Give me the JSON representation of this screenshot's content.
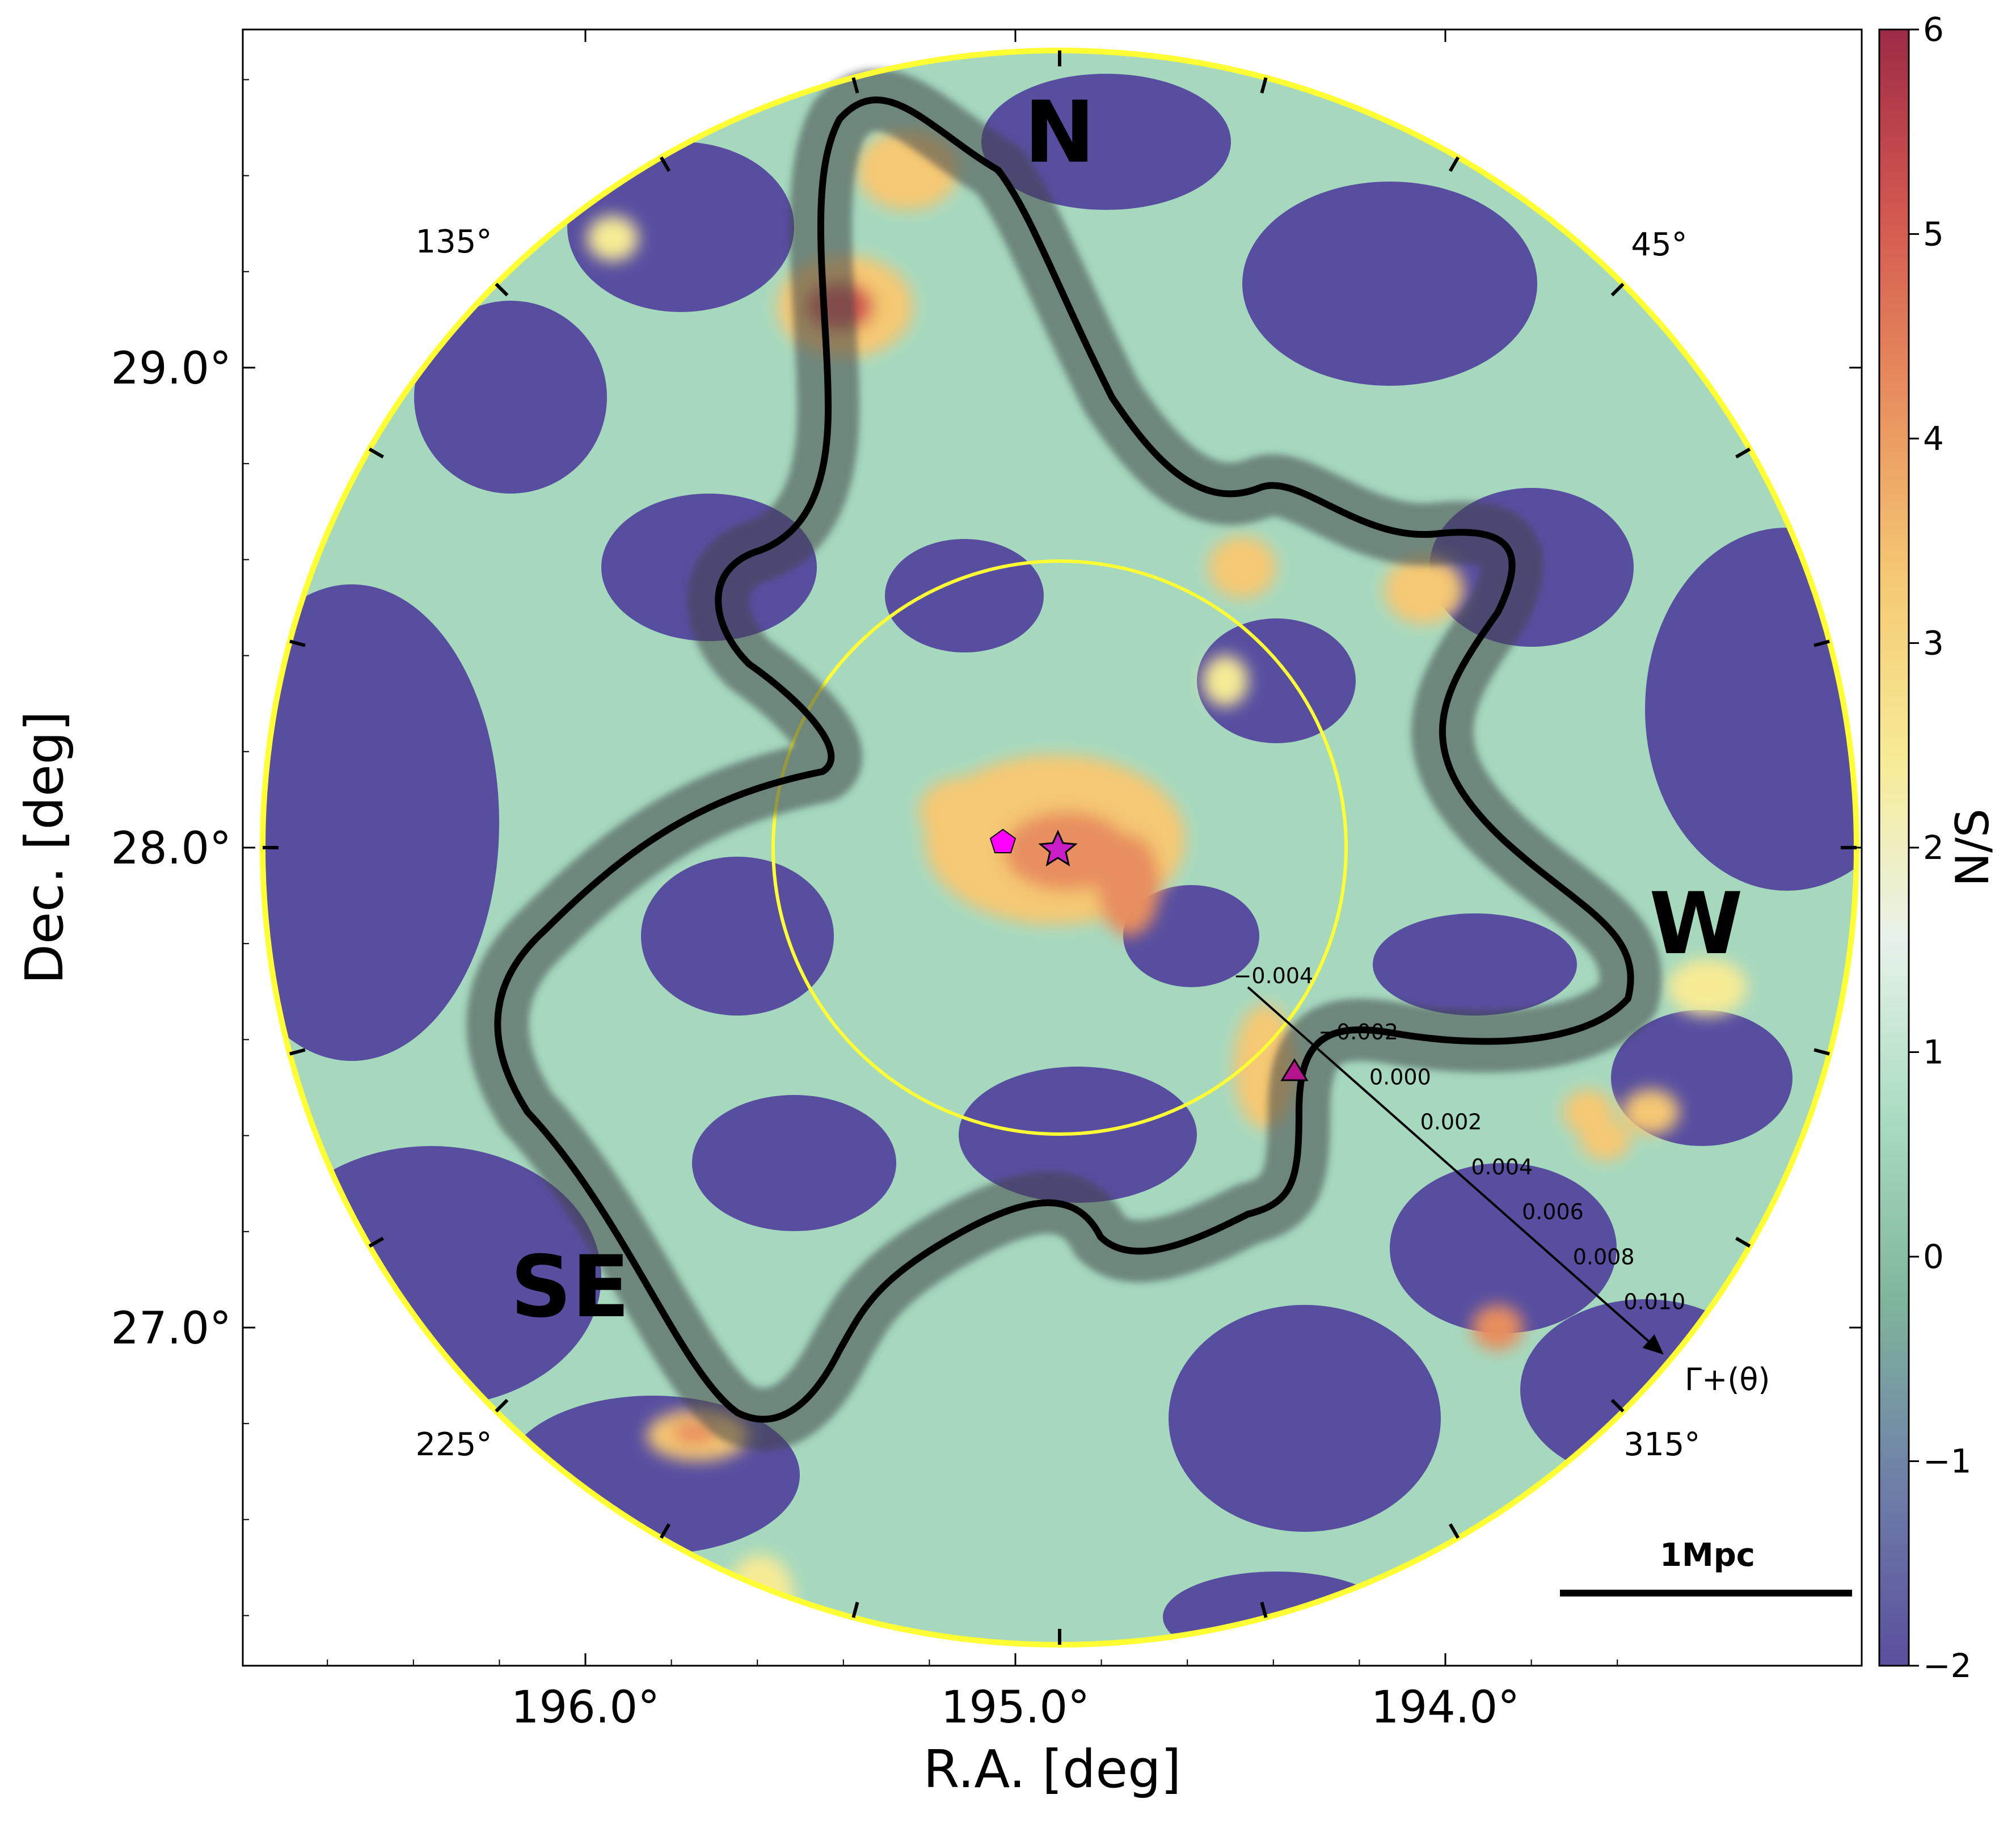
{
  "chart_data": {
    "type": "heatmap",
    "title": "",
    "xlabel": "R.A. [deg]",
    "ylabel": "Dec. [deg]",
    "x_axis": {
      "ticks": [
        196.0,
        195.0,
        194.0
      ],
      "tick_labels": [
        "196.0°",
        "195.0°",
        "194.0°"
      ],
      "reversed": true
    },
    "y_axis": {
      "ticks": [
        29.0,
        28.0,
        27.0
      ],
      "tick_labels": [
        "29.0°",
        "28.0°",
        "27.0°"
      ]
    },
    "colorbar": {
      "label": "N/S",
      "range": [
        -2,
        6
      ],
      "ticks": [
        -2,
        -1,
        0,
        1,
        2,
        3,
        4,
        5,
        6
      ],
      "tick_labels": [
        "−2",
        "−1",
        "0",
        "1",
        "2",
        "3",
        "4",
        "5",
        "6"
      ],
      "colormap": [
        "#5a4f9e",
        "#6f7fa8",
        "#7fb59c",
        "#a8dcc0",
        "#e8f2ea",
        "#f7eb95",
        "#f5c873",
        "#e88e5e",
        "#d2574f",
        "#9e2b47"
      ]
    },
    "region_labels": [
      "N",
      "W",
      "SE"
    ],
    "angle_labels": [
      "135°",
      "45°",
      "225°",
      "315°"
    ],
    "profile_axis": {
      "label": "Γ+(θ)",
      "ticks": [
        "−0.004",
        "−0.002",
        "0.000",
        "0.002",
        "0.004",
        "0.006",
        "0.008",
        "0.010"
      ]
    },
    "scale_bar": "1Mpc",
    "markers": [
      {
        "shape": "star",
        "color": "#c81ec8"
      },
      {
        "shape": "pentagon",
        "color": "#ff00ff"
      },
      {
        "shape": "triangle",
        "color": "#b4148c"
      }
    ],
    "circle_color": "#ffff33",
    "grid": false
  }
}
